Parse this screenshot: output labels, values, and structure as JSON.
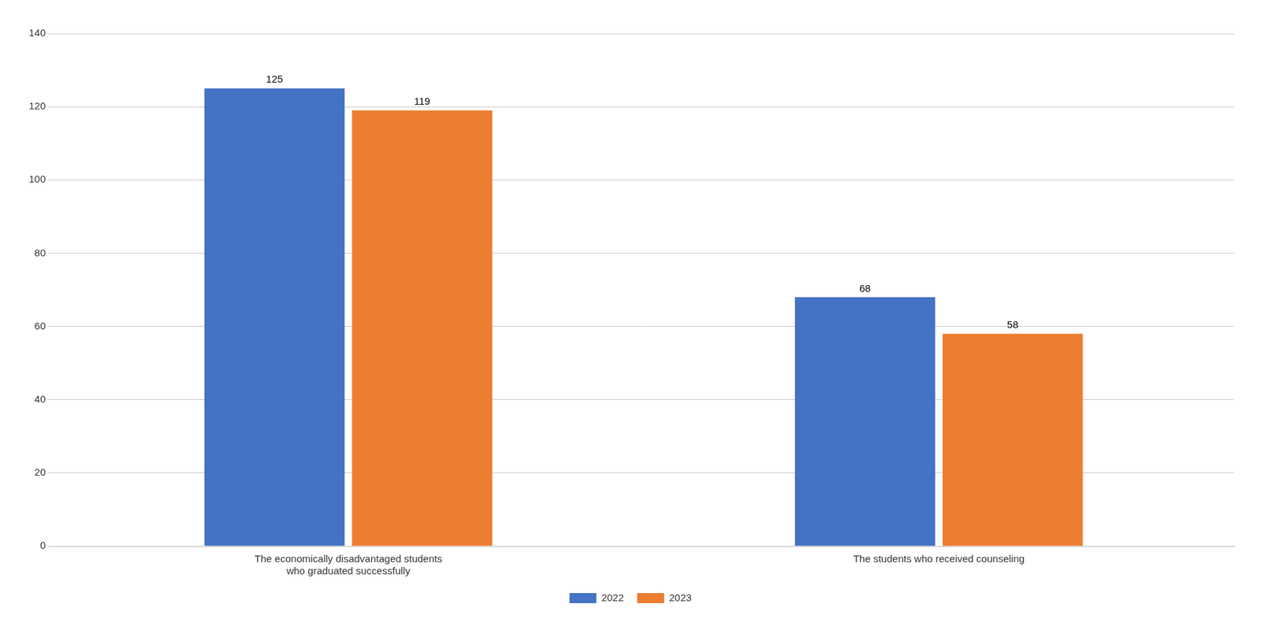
{
  "chart_data": {
    "type": "bar",
    "categories": [
      "The economically disadvantaged students\nwho graduated successfully",
      "The students who received counseling"
    ],
    "series": [
      {
        "name": "2022",
        "color": "#4472C4",
        "values": [
          125,
          68
        ]
      },
      {
        "name": "2023",
        "color": "#ED7D31",
        "values": [
          119,
          58
        ]
      }
    ],
    "ylim": [
      0,
      140
    ],
    "yticks": [
      0,
      20,
      40,
      60,
      80,
      100,
      120,
      140
    ],
    "grid": true,
    "legend": "bottom",
    "data_labels": true
  }
}
